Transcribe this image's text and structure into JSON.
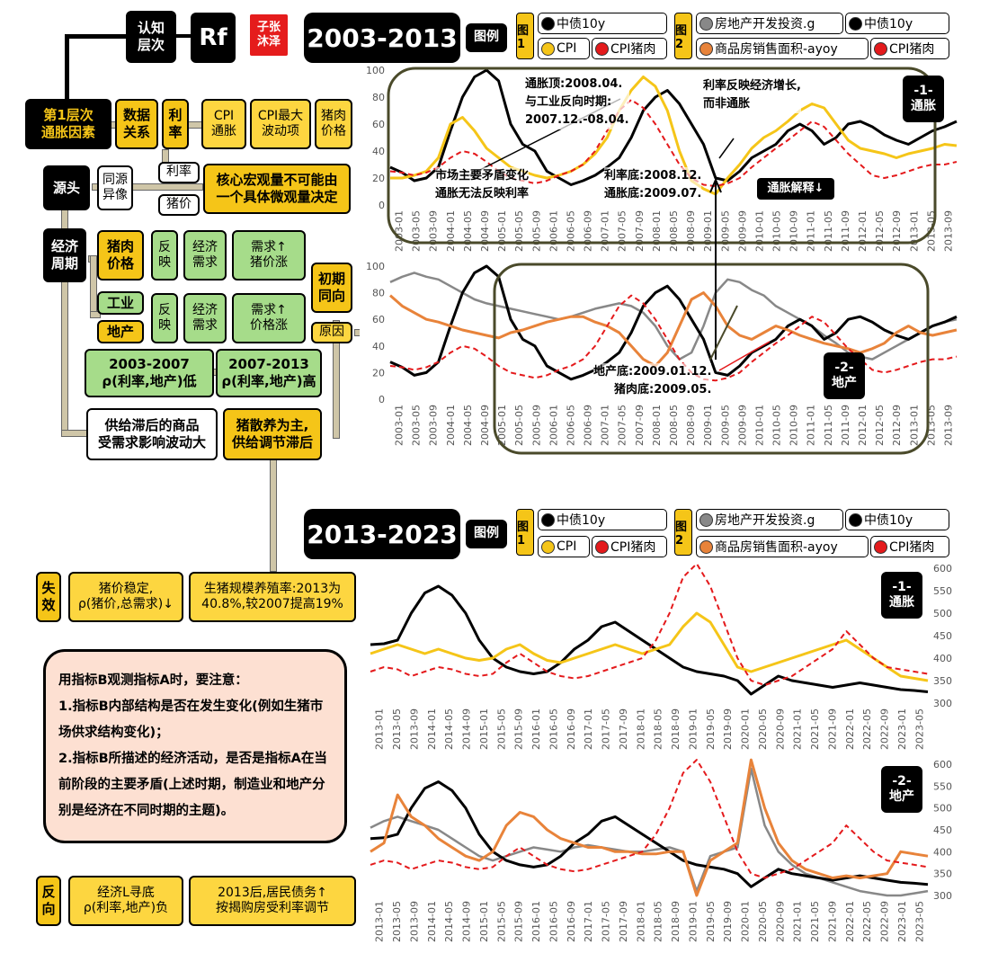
{
  "header": {
    "level_label": "认知\n层次",
    "rf_label": "Rf",
    "author_stamp": "子张\n沐泽",
    "period1": "2003-2013",
    "period2": "2013-2023",
    "legend_title": "图例"
  },
  "legend": {
    "fig1_label": "图\n1",
    "fig2_label": "图\n2",
    "fig1_items": [
      {
        "name": "中债10y",
        "color": "#000000"
      },
      {
        "name": "CPI",
        "color": "#f5c518"
      },
      {
        "name": "CPI猪肉",
        "color": "#e41a1c"
      }
    ],
    "fig2_items": [
      {
        "name": "房地产开发投资.g",
        "color": "#888888"
      },
      {
        "name": "中债10y",
        "color": "#000000"
      },
      {
        "name": "商品房销售面积-ayoy",
        "color": "#e8833a"
      },
      {
        "name": "CPI猪肉",
        "color": "#e41a1c"
      }
    ]
  },
  "diagram": {
    "level1": "第1层次\n通胀因素",
    "data_relation": "数据\n关系",
    "rate": "利\n率",
    "cpi_inflation": "CPI\n通胀",
    "cpi_max_vol": "CPI最大\n波动项",
    "pork_price": "猪肉\n价格",
    "rate_small": "利率",
    "pig_small": "猪价",
    "core_macro": "核心宏观量不可能由\n一个具体微观量决定",
    "source": "源头",
    "same_source": "同源\n异像",
    "econ_cycle": "经济\n周期",
    "pork_price2": "猪肉\n价格",
    "reflect1": "反\n映",
    "econ_demand1": "经济\n需求",
    "demand_pig": "需求↑\n猪价涨",
    "initial_same": "初期\n同向",
    "industry": "工业",
    "property": "地产",
    "reflect2": "反\n映",
    "econ_demand2": "经济\n需求",
    "demand_price": "需求↑\n价格涨",
    "reason": "原因",
    "p1_low": "2003-2007\nρ(利率,地产)低",
    "p2_high": "2007-2013\nρ(利率,地产)高",
    "supply_lag_goods": "供给滞后的商品\n受需求影响波动大",
    "pig_scatter": "猪散养为主,\n供给调节滞后",
    "fail": "失\n效",
    "pig_stable": "猪价稳定,\nρ(猪价,总需求)↓",
    "scale_rate": "生猪规模养殖率:2013为\n40.8%,较2007提高19%",
    "note": "用指标B观测指标A时，要注意：\n1.指标B内部结构是否在发生变化(例如生猪市场供求结构变化)；\n2.指标B所描述的经济活动，是否是指标A在当前阶段的主要矛盾(上述时期，制造业和地产分别是经济在不同时期的主题)。",
    "reverse": "反\n向",
    "econ_l": "经济L寻底\nρ(利率,地产)负",
    "after2013": "2013后,居民债务↑\n按揭购房受利率调节"
  },
  "annotations": {
    "inflation_top": "通胀顶:2008.04.\n与工业反向时期:\n2007.12.-08.04.",
    "rate_reflect": "利率反映经济增长,\n而非通胀",
    "main_contradiction": "市场主要矛盾变化\n通胀无法反映利率",
    "rate_bottom": "利率底:2008.12.\n通胀底:2009.07.",
    "inflation_explain": "通胀解释↓",
    "property_bottom": "地产底:2009.01.12.\n猪肉底:2009.05.",
    "tag1": "-1-\n通胀",
    "tag2": "-2-\n地产",
    "tag3": "-1-\n通胀",
    "tag4": "-2-\n地产"
  },
  "chart_data": [
    {
      "type": "line",
      "title": "",
      "ylim": [
        0,
        100
      ],
      "yticks": [
        0,
        20,
        40,
        60,
        80,
        100
      ],
      "xticks": [
        "2003-01",
        "2003-05",
        "2003-09",
        "2004-01",
        "2004-05",
        "2004-09",
        "2005-01",
        "2005-05",
        "2005-09",
        "2006-01",
        "2006-05",
        "2006-09",
        "2007-01",
        "2007-05",
        "2007-09",
        "2008-01",
        "2008-05",
        "2008-09",
        "2009-01",
        "2009-05",
        "2009-09",
        "2010-01",
        "2010-05",
        "2010-09",
        "2011-01",
        "2011-05",
        "2011-09",
        "2012-01",
        "2012-05",
        "2012-09",
        "2013-01",
        "2013-05",
        "2013-09"
      ],
      "series": [
        {
          "name": "中债10y",
          "color": "#000000",
          "dash": false,
          "values": [
            28,
            24,
            18,
            20,
            28,
            55,
            80,
            95,
            100,
            92,
            60,
            45,
            40,
            25,
            20,
            15,
            18,
            22,
            28,
            35,
            50,
            70,
            80,
            85,
            75,
            60,
            45,
            20,
            18,
            25,
            35,
            40,
            45,
            55,
            60,
            55,
            45,
            50,
            60,
            62,
            58,
            52,
            48,
            45,
            50,
            55,
            58,
            62
          ]
        },
        {
          "name": "CPI",
          "color": "#f5c518",
          "dash": false,
          "values": [
            20,
            20,
            22,
            25,
            35,
            60,
            65,
            55,
            42,
            35,
            28,
            25,
            22,
            20,
            22,
            25,
            30,
            38,
            50,
            70,
            85,
            95,
            88,
            70,
            40,
            18,
            12,
            8,
            20,
            30,
            42,
            50,
            55,
            62,
            70,
            75,
            72,
            60,
            48,
            42,
            40,
            38,
            35,
            38,
            40,
            42,
            45,
            44
          ]
        },
        {
          "name": "CPI猪肉",
          "color": "#e41a1c",
          "dash": true,
          "values": [
            25,
            24,
            22,
            24,
            28,
            35,
            40,
            38,
            32,
            25,
            20,
            18,
            16,
            18,
            22,
            25,
            30,
            40,
            55,
            70,
            78,
            72,
            60,
            45,
            30,
            20,
            15,
            14,
            16,
            20,
            28,
            35,
            42,
            48,
            55,
            62,
            58,
            48,
            38,
            30,
            22,
            20,
            22,
            25,
            28,
            30,
            30,
            32
          ]
        }
      ]
    },
    {
      "type": "line",
      "title": "",
      "ylim": [
        0,
        100
      ],
      "yticks": [
        0,
        20,
        40,
        60,
        80,
        100
      ],
      "xticks": [
        "2003-01",
        "2003-05",
        "2003-09",
        "2004-01",
        "2004-05",
        "2004-09",
        "2005-01",
        "2005-05",
        "2005-09",
        "2006-01",
        "2006-05",
        "2006-09",
        "2007-01",
        "2007-05",
        "2007-09",
        "2008-01",
        "2008-05",
        "2008-09",
        "2009-01",
        "2009-05",
        "2009-09",
        "2010-01",
        "2010-05",
        "2010-09",
        "2011-01",
        "2011-05",
        "2011-09",
        "2012-01",
        "2012-05",
        "2012-09",
        "2013-01",
        "2013-05",
        "2013-09"
      ],
      "series": [
        {
          "name": "房地产开发投资.g",
          "color": "#888888",
          "dash": false,
          "values": [
            88,
            92,
            95,
            92,
            90,
            85,
            80,
            75,
            72,
            70,
            68,
            66,
            64,
            62,
            60,
            62,
            65,
            68,
            70,
            72,
            70,
            65,
            55,
            40,
            30,
            35,
            55,
            80,
            90,
            88,
            82,
            78,
            70,
            65,
            60,
            55,
            48,
            42,
            35,
            32,
            30,
            35,
            40,
            45,
            50,
            55,
            58,
            60
          ]
        },
        {
          "name": "中债10y",
          "color": "#000000",
          "dash": false,
          "values": [
            28,
            24,
            18,
            20,
            28,
            55,
            80,
            95,
            100,
            92,
            60,
            45,
            40,
            25,
            20,
            15,
            18,
            22,
            28,
            35,
            50,
            70,
            80,
            85,
            75,
            60,
            45,
            20,
            18,
            25,
            35,
            40,
            45,
            55,
            60,
            55,
            45,
            50,
            60,
            62,
            58,
            52,
            48,
            45,
            50,
            55,
            58,
            62
          ]
        },
        {
          "name": "商品房销售面积-ayoy",
          "color": "#e8833a",
          "dash": false,
          "values": [
            78,
            70,
            65,
            60,
            58,
            55,
            52,
            50,
            48,
            46,
            50,
            52,
            55,
            58,
            60,
            62,
            62,
            58,
            55,
            50,
            40,
            30,
            25,
            35,
            55,
            75,
            80,
            70,
            55,
            48,
            45,
            50,
            55,
            52,
            48,
            45,
            42,
            40,
            38,
            35,
            38,
            42,
            50,
            55,
            50,
            48,
            50,
            52
          ]
        },
        {
          "name": "CPI猪肉",
          "color": "#e41a1c",
          "dash": true,
          "values": [
            25,
            24,
            22,
            24,
            28,
            35,
            40,
            38,
            32,
            25,
            20,
            18,
            16,
            18,
            22,
            25,
            30,
            40,
            55,
            70,
            78,
            72,
            60,
            45,
            30,
            20,
            15,
            14,
            16,
            20,
            28,
            35,
            42,
            48,
            55,
            62,
            58,
            48,
            38,
            30,
            22,
            20,
            22,
            25,
            28,
            30,
            30,
            32
          ]
        }
      ]
    },
    {
      "type": "line",
      "title": "",
      "ylim": [
        300,
        600
      ],
      "yticks": [
        300,
        350,
        400,
        450,
        500,
        550,
        600
      ],
      "xticks": [
        "2013-01",
        "2013-05",
        "2013-09",
        "2014-01",
        "2014-05",
        "2014-09",
        "2015-01",
        "2015-05",
        "2015-09",
        "2016-01",
        "2016-05",
        "2016-09",
        "2017-01",
        "2017-05",
        "2017-09",
        "2018-01",
        "2018-05",
        "2018-09",
        "2019-01",
        "2019-05",
        "2019-09",
        "2020-01",
        "2020-05",
        "2020-09",
        "2021-01",
        "2021-05",
        "2021-09",
        "2022-01",
        "2022-05",
        "2022-09",
        "2023-01",
        "2023-05"
      ],
      "series": [
        {
          "name": "中债10y",
          "color": "#000000",
          "dash": false,
          "values": [
            430,
            432,
            440,
            500,
            545,
            560,
            540,
            500,
            440,
            400,
            380,
            370,
            365,
            370,
            390,
            420,
            440,
            470,
            480,
            460,
            440,
            420,
            400,
            380,
            370,
            365,
            360,
            350,
            320,
            340,
            360,
            350,
            345,
            340,
            335,
            340,
            345,
            340,
            335,
            330,
            328,
            325
          ]
        },
        {
          "name": "CPI",
          "color": "#f5c518",
          "dash": false,
          "values": [
            410,
            420,
            430,
            420,
            410,
            420,
            410,
            400,
            395,
            400,
            420,
            430,
            410,
            395,
            390,
            400,
            410,
            420,
            430,
            420,
            410,
            420,
            430,
            470,
            500,
            480,
            430,
            380,
            370,
            380,
            390,
            400,
            410,
            420,
            430,
            440,
            420,
            400,
            380,
            360,
            355,
            350
          ]
        },
        {
          "name": "CPI猪肉",
          "color": "#e41a1c",
          "dash": true,
          "values": [
            370,
            380,
            375,
            360,
            370,
            380,
            375,
            365,
            360,
            365,
            390,
            410,
            390,
            370,
            360,
            355,
            360,
            370,
            380,
            390,
            400,
            440,
            500,
            580,
            610,
            560,
            480,
            400,
            350,
            340,
            350,
            360,
            380,
            400,
            420,
            460,
            430,
            400,
            380,
            375,
            370,
            365
          ]
        }
      ]
    },
    {
      "type": "line",
      "title": "",
      "ylim": [
        300,
        600
      ],
      "yticks": [
        300,
        350,
        400,
        450,
        500,
        550,
        600
      ],
      "xticks": [
        "2013-01",
        "2013-05",
        "2013-09",
        "2014-01",
        "2014-05",
        "2014-09",
        "2015-01",
        "2015-05",
        "2015-09",
        "2016-01",
        "2016-05",
        "2016-09",
        "2017-01",
        "2017-05",
        "2017-09",
        "2018-01",
        "2018-05",
        "2018-09",
        "2019-01",
        "2019-05",
        "2019-09",
        "2020-01",
        "2020-05",
        "2020-09",
        "2021-01",
        "2021-05",
        "2021-09",
        "2022-01",
        "2022-05",
        "2022-09",
        "2023-01",
        "2023-05"
      ],
      "series": [
        {
          "name": "房地产开发投资.g",
          "color": "#888888",
          "dash": false,
          "values": [
            455,
            470,
            480,
            470,
            460,
            450,
            430,
            410,
            390,
            380,
            390,
            400,
            410,
            405,
            400,
            410,
            415,
            410,
            405,
            400,
            400,
            405,
            410,
            400,
            310,
            390,
            400,
            410,
            590,
            460,
            400,
            370,
            350,
            340,
            330,
            320,
            310,
            305,
            300,
            300,
            305,
            310
          ]
        },
        {
          "name": "中债10y",
          "color": "#000000",
          "dash": false,
          "values": [
            430,
            432,
            440,
            500,
            545,
            560,
            540,
            500,
            440,
            400,
            380,
            370,
            365,
            370,
            390,
            420,
            440,
            470,
            480,
            460,
            440,
            420,
            400,
            380,
            370,
            365,
            360,
            350,
            320,
            340,
            360,
            350,
            345,
            340,
            335,
            340,
            345,
            340,
            335,
            330,
            328,
            325
          ]
        },
        {
          "name": "商品房销售面积-ayoy",
          "color": "#e8833a",
          "dash": false,
          "values": [
            400,
            420,
            530,
            480,
            460,
            430,
            410,
            390,
            380,
            400,
            460,
            490,
            480,
            450,
            430,
            420,
            410,
            410,
            400,
            400,
            395,
            395,
            400,
            400,
            300,
            380,
            400,
            420,
            610,
            500,
            420,
            380,
            360,
            350,
            340,
            345,
            340,
            345,
            350,
            400,
            395,
            390
          ]
        },
        {
          "name": "CPI猪肉",
          "color": "#e41a1c",
          "dash": true,
          "values": [
            370,
            380,
            375,
            360,
            370,
            380,
            375,
            365,
            360,
            365,
            390,
            410,
            390,
            370,
            360,
            355,
            360,
            370,
            380,
            390,
            400,
            440,
            500,
            580,
            610,
            560,
            480,
            400,
            350,
            340,
            350,
            360,
            380,
            400,
            420,
            460,
            430,
            400,
            380,
            375,
            370,
            365
          ]
        }
      ]
    }
  ]
}
